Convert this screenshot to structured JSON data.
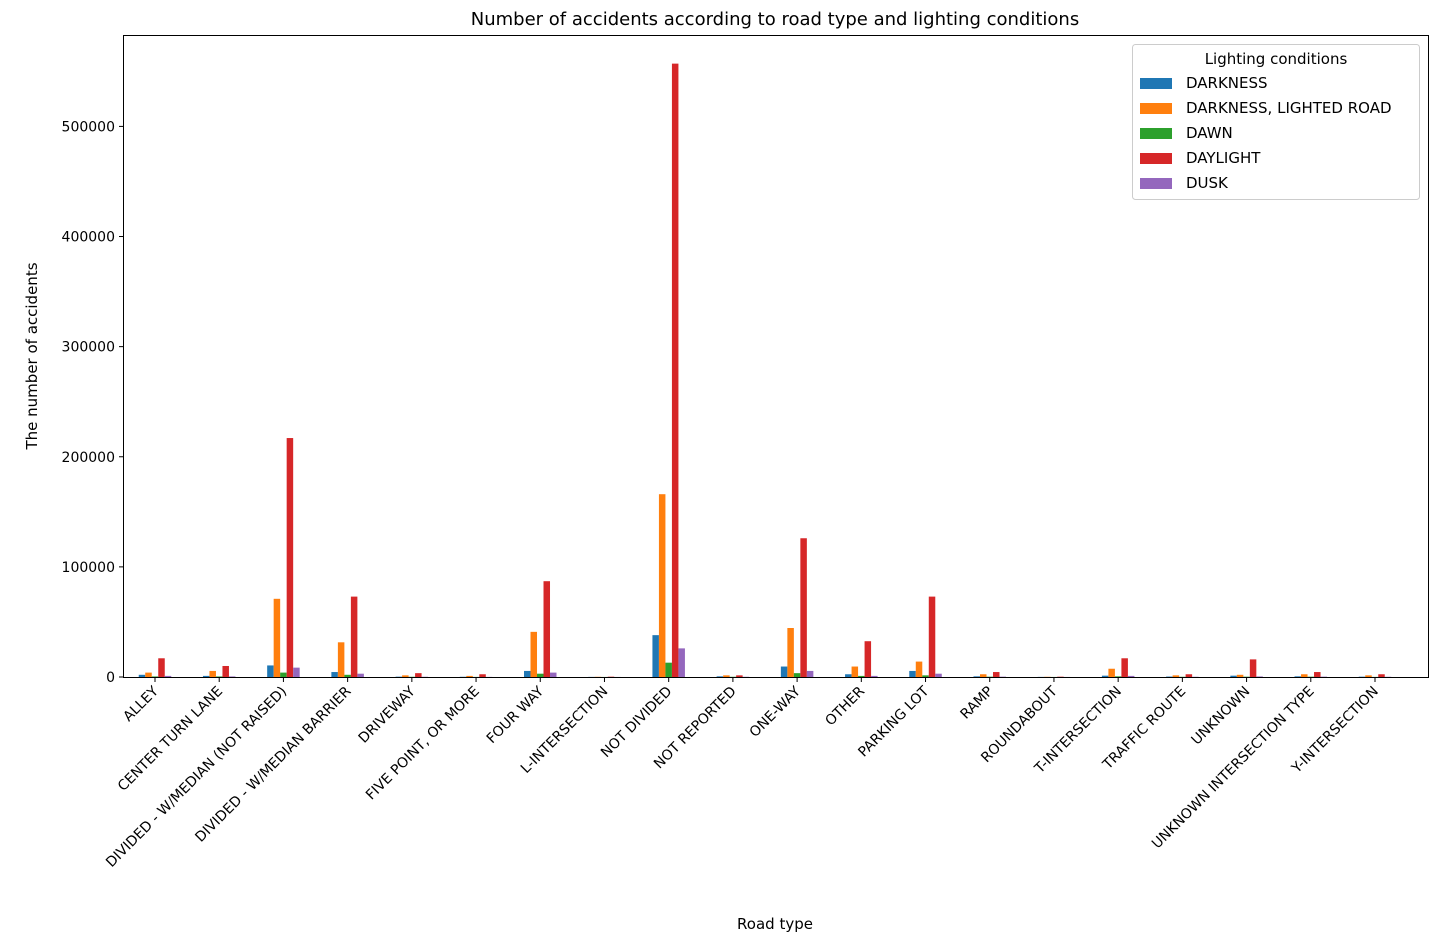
{
  "chart_data": {
    "type": "bar",
    "title": "Number of accidents according to road type and lighting conditions",
    "xlabel": "Road type",
    "ylabel": "The number of accidents",
    "ylim": [
      0,
      583000
    ],
    "yticks": [
      0,
      100000,
      200000,
      300000,
      400000,
      500000
    ],
    "grid": false,
    "legend": {
      "title": "Lighting conditions",
      "placement": "top-right"
    },
    "categories": [
      "ALLEY",
      "CENTER TURN LANE",
      "DIVIDED - W/MEDIAN (NOT RAISED)",
      "DIVIDED - W/MEDIAN BARRIER",
      "DRIVEWAY",
      "FIVE POINT, OR MORE",
      "FOUR WAY",
      "L-INTERSECTION",
      "NOT DIVIDED",
      "NOT REPORTED",
      "ONE-WAY",
      "OTHER",
      "PARKING LOT",
      "RAMP",
      "ROUNDABOUT",
      "T-INTERSECTION",
      "TRAFFIC ROUTE",
      "UNKNOWN",
      "UNKNOWN INTERSECTION TYPE",
      "Y-INTERSECTION"
    ],
    "series": [
      {
        "name": "DARKNESS",
        "color": "#1f77b4",
        "values": [
          2000,
          1000,
          10500,
          4500,
          300,
          200,
          5500,
          100,
          38000,
          600,
          9500,
          2500,
          5500,
          600,
          100,
          1200,
          400,
          1200,
          600,
          300
        ]
      },
      {
        "name": "DARKNESS, LIGHTED ROAD",
        "color": "#ff7f0e",
        "values": [
          4000,
          5500,
          71000,
          31500,
          1500,
          1000,
          41000,
          200,
          166000,
          1500,
          44500,
          9500,
          14000,
          2500,
          200,
          7500,
          1500,
          2000,
          2500,
          1500
        ]
      },
      {
        "name": "DAWN",
        "color": "#2ca02c",
        "values": [
          500,
          500,
          4000,
          2000,
          200,
          100,
          3000,
          50,
          13000,
          200,
          3500,
          1000,
          1500,
          300,
          50,
          600,
          200,
          300,
          300,
          100
        ]
      },
      {
        "name": "DAYLIGHT",
        "color": "#d62728",
        "values": [
          17000,
          10000,
          217000,
          73000,
          3500,
          2500,
          87000,
          300,
          557000,
          1500,
          126000,
          32500,
          73000,
          4500,
          300,
          17000,
          2500,
          16000,
          4500,
          2500
        ]
      },
      {
        "name": "DUSK",
        "color": "#9467bd",
        "values": [
          1000,
          500,
          8500,
          3000,
          200,
          100,
          4000,
          50,
          26000,
          200,
          5500,
          1000,
          3000,
          300,
          50,
          1000,
          200,
          500,
          300,
          200
        ]
      }
    ]
  }
}
